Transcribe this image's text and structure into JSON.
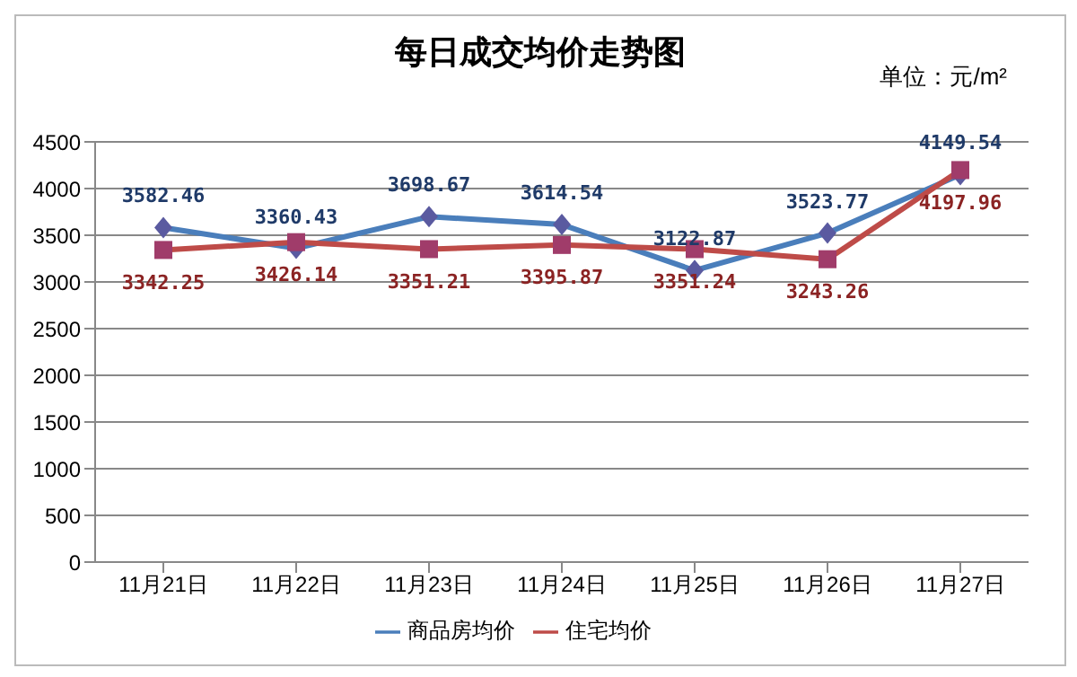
{
  "chart_data": {
    "type": "line",
    "title": "每日成交均价走势图",
    "annotations": [
      "单位：元/m²"
    ],
    "categories": [
      "11月21日",
      "11月22日",
      "11月23日",
      "11月24日",
      "11月25日",
      "11月26日",
      "11月27日"
    ],
    "series": [
      {
        "name": "商品房均价",
        "color": "#4a7ebb",
        "marker": "diamond",
        "values": [
          3582.46,
          3360.43,
          3698.67,
          3614.54,
          3122.87,
          3523.77,
          4149.54
        ]
      },
      {
        "name": "住宅均价",
        "color": "#be4b48",
        "marker": "square",
        "values": [
          3342.25,
          3426.14,
          3351.21,
          3395.87,
          3351.24,
          3243.26,
          4197.96
        ]
      }
    ],
    "ylim": [
      0,
      4500
    ],
    "yticks": [
      0,
      500,
      1000,
      1500,
      2000,
      2500,
      3000,
      3500,
      4000,
      4500
    ],
    "grid": "y",
    "legend": "bottom",
    "data_labels": true
  }
}
